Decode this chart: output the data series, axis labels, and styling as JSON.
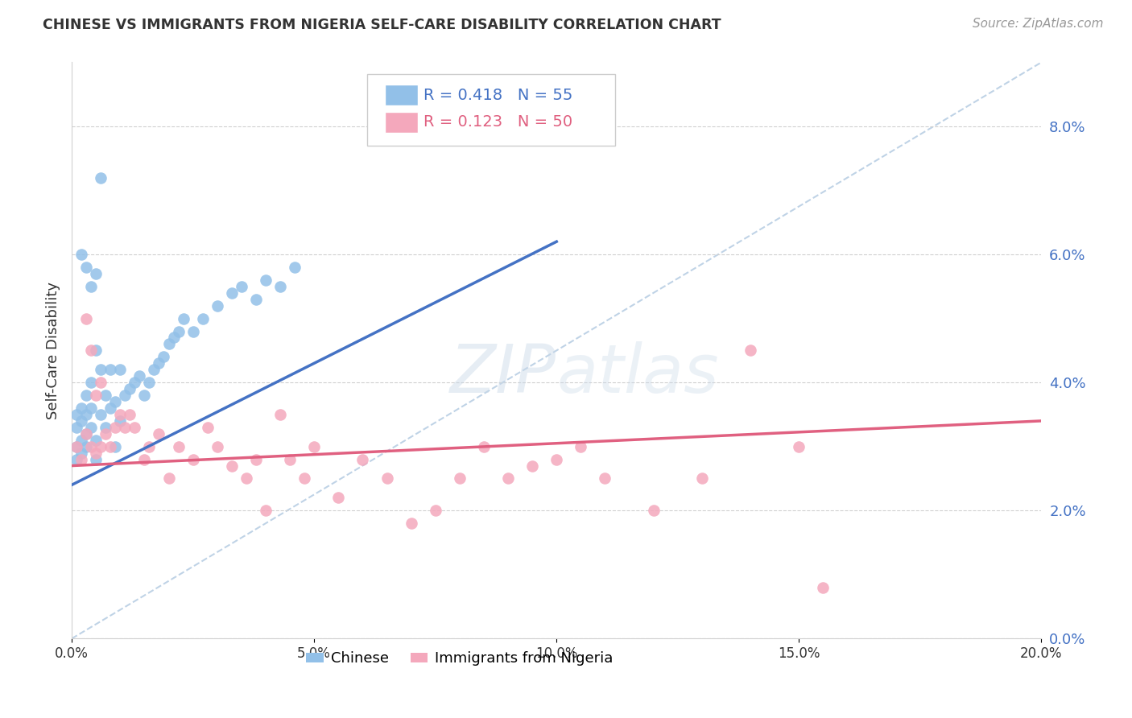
{
  "title": "CHINESE VS IMMIGRANTS FROM NIGERIA SELF-CARE DISABILITY CORRELATION CHART",
  "source": "Source: ZipAtlas.com",
  "ylabel": "Self-Care Disability",
  "legend1_label": "Chinese",
  "legend2_label": "Immigrants from Nigeria",
  "R1": 0.418,
  "N1": 55,
  "R2": 0.123,
  "N2": 50,
  "color_chinese": "#92C0E8",
  "color_nigeria": "#F4A8BC",
  "color_line_chinese": "#4472C4",
  "color_line_nigeria": "#E06080",
  "color_dashed": "#B0C8E0",
  "background": "#FFFFFF",
  "xlim": [
    0.0,
    0.2
  ],
  "ylim": [
    0.0,
    0.09
  ],
  "xticks": [
    0.0,
    0.05,
    0.1,
    0.15,
    0.2
  ],
  "yticks_right": [
    0.0,
    0.02,
    0.04,
    0.06,
    0.08
  ],
  "blue_line": [
    [
      0.0,
      0.1
    ],
    [
      0.024,
      0.062
    ]
  ],
  "pink_line": [
    [
      0.0,
      0.2
    ],
    [
      0.027,
      0.034
    ]
  ],
  "dash_line": [
    [
      0.0,
      0.2
    ],
    [
      0.0,
      0.09
    ]
  ],
  "cn_x": [
    0.001,
    0.001,
    0.001,
    0.001,
    0.002,
    0.002,
    0.002,
    0.002,
    0.003,
    0.003,
    0.003,
    0.003,
    0.004,
    0.004,
    0.004,
    0.005,
    0.005,
    0.005,
    0.006,
    0.006,
    0.007,
    0.007,
    0.008,
    0.008,
    0.009,
    0.009,
    0.01,
    0.01,
    0.011,
    0.012,
    0.013,
    0.014,
    0.015,
    0.016,
    0.017,
    0.018,
    0.019,
    0.02,
    0.021,
    0.022,
    0.023,
    0.025,
    0.027,
    0.03,
    0.033,
    0.035,
    0.038,
    0.04,
    0.043,
    0.046,
    0.002,
    0.003,
    0.004,
    0.005,
    0.006
  ],
  "cn_y": [
    0.03,
    0.033,
    0.028,
    0.035,
    0.031,
    0.034,
    0.029,
    0.036,
    0.03,
    0.032,
    0.035,
    0.038,
    0.033,
    0.036,
    0.04,
    0.028,
    0.031,
    0.045,
    0.035,
    0.042,
    0.033,
    0.038,
    0.036,
    0.042,
    0.03,
    0.037,
    0.034,
    0.042,
    0.038,
    0.039,
    0.04,
    0.041,
    0.038,
    0.04,
    0.042,
    0.043,
    0.044,
    0.046,
    0.047,
    0.048,
    0.05,
    0.048,
    0.05,
    0.052,
    0.054,
    0.055,
    0.053,
    0.056,
    0.055,
    0.058,
    0.06,
    0.058,
    0.055,
    0.057,
    0.072
  ],
  "ng_x": [
    0.001,
    0.002,
    0.003,
    0.003,
    0.004,
    0.004,
    0.005,
    0.005,
    0.006,
    0.006,
    0.007,
    0.008,
    0.009,
    0.01,
    0.011,
    0.012,
    0.013,
    0.015,
    0.016,
    0.018,
    0.02,
    0.022,
    0.025,
    0.028,
    0.03,
    0.033,
    0.036,
    0.038,
    0.04,
    0.043,
    0.045,
    0.048,
    0.05,
    0.055,
    0.06,
    0.065,
    0.07,
    0.075,
    0.08,
    0.085,
    0.09,
    0.095,
    0.1,
    0.105,
    0.11,
    0.12,
    0.13,
    0.14,
    0.15,
    0.155
  ],
  "ng_y": [
    0.03,
    0.028,
    0.032,
    0.05,
    0.03,
    0.045,
    0.029,
    0.038,
    0.03,
    0.04,
    0.032,
    0.03,
    0.033,
    0.035,
    0.033,
    0.035,
    0.033,
    0.028,
    0.03,
    0.032,
    0.025,
    0.03,
    0.028,
    0.033,
    0.03,
    0.027,
    0.025,
    0.028,
    0.02,
    0.035,
    0.028,
    0.025,
    0.03,
    0.022,
    0.028,
    0.025,
    0.018,
    0.02,
    0.025,
    0.03,
    0.025,
    0.027,
    0.028,
    0.03,
    0.025,
    0.02,
    0.025,
    0.045,
    0.03,
    0.008
  ]
}
